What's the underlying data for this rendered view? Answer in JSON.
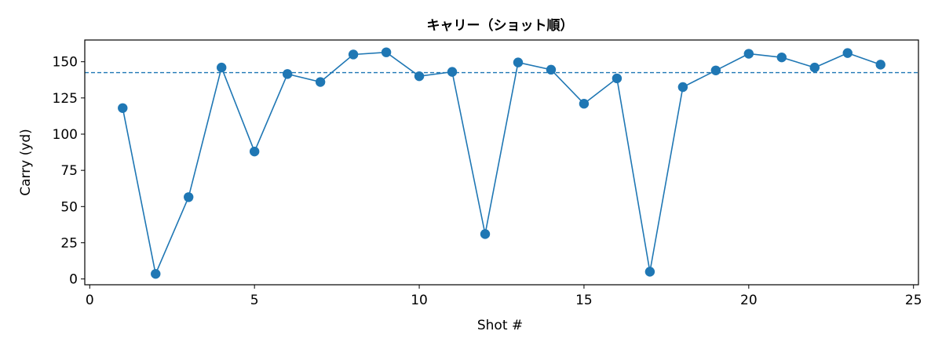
{
  "chart_data": {
    "type": "line",
    "title": "キャリー（ショット順）",
    "xlabel": "Shot #",
    "ylabel": "Carry (yd)",
    "xlim": [
      -0.15,
      25.15
    ],
    "ylim": [
      -4,
      165
    ],
    "x_ticks": [
      0,
      5,
      10,
      15,
      20,
      25
    ],
    "y_ticks": [
      0,
      25,
      50,
      75,
      100,
      125,
      150
    ],
    "grid": false,
    "line_color": "#1f77b4",
    "reference_line": {
      "y": 142.5,
      "style": "dashed",
      "color": "#1f77b4"
    },
    "series": [
      {
        "x": [
          1,
          2,
          3,
          4,
          5,
          6,
          7,
          8,
          9,
          10,
          11,
          12,
          13,
          14,
          15,
          16,
          17,
          18,
          19,
          20,
          21,
          22,
          23,
          24
        ],
        "values": [
          118,
          3.5,
          56.5,
          146,
          88,
          141.5,
          136,
          155,
          156.5,
          140,
          143,
          31,
          149.5,
          144.5,
          121,
          138.5,
          5,
          132.5,
          144,
          155.5,
          153,
          146,
          156,
          148
        ]
      }
    ]
  }
}
